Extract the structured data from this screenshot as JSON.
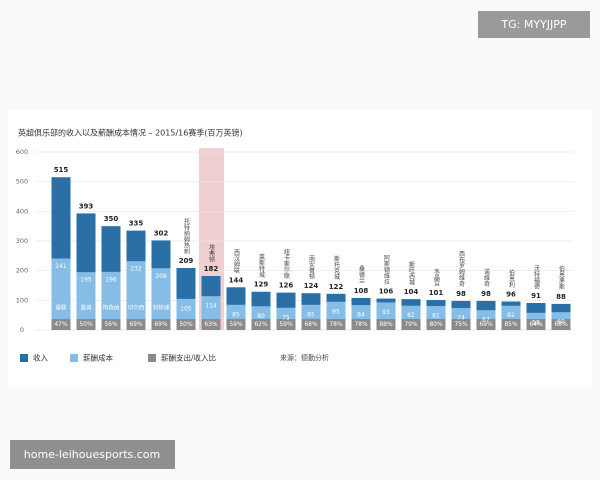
{
  "chart_data": {
    "type": "bar",
    "title": "英超俱乐部的收入以及薪酬成本情况 – 2015/16赛季(百万英镑)",
    "categories": [
      "曼联",
      "曼城",
      "阿森纳",
      "切尔西",
      "利物浦",
      "托特纳姆热刺",
      "埃弗顿",
      "西汉姆联",
      "莱斯特城",
      "纽卡斯尔联",
      "南安普顿",
      "斯托克城",
      "桑德兰",
      "阿斯顿维拉",
      "斯旺西城",
      "水晶宫",
      "西布罗姆维奇",
      "诺维奇",
      "伯恩利",
      "沃特福德",
      "伯恩茅斯"
    ],
    "series": [
      {
        "name": "收入",
        "color": "#2a6fa6",
        "values": [
          515,
          393,
          350,
          335,
          302,
          209,
          182,
          144,
          129,
          126,
          124,
          122,
          108,
          106,
          104,
          101,
          98,
          98,
          96,
          91,
          88
        ]
      },
      {
        "name": "薪酬成本",
        "color": "#86bde6",
        "values": [
          241,
          195,
          196,
          232,
          208,
          105,
          114,
          85,
          80,
          75,
          85,
          95,
          84,
          93,
          82,
          81,
          74,
          67,
          82,
          58,
          60
        ]
      }
    ],
    "ratio": {
      "name": "薪酬支出/收入比",
      "color": "#8a8a8a",
      "values": [
        47,
        50,
        56,
        69,
        69,
        50,
        63,
        59,
        62,
        59,
        68,
        78,
        78,
        88,
        79,
        80,
        75,
        69,
        85,
        64,
        68
      ],
      "value_labels": [
        "47%",
        "50%",
        "56%",
        "69%",
        "69%",
        "50%",
        "63%",
        "59%",
        "62%",
        "59%",
        "68%",
        "78%",
        "78%",
        "88%",
        "79%",
        "80%",
        "75%",
        "69%",
        "85%",
        "64%",
        "68%"
      ]
    },
    "source": "来源：德勤分析",
    "ylim": [
      0,
      600
    ],
    "yticks": [
      0,
      100,
      200,
      300,
      400,
      500,
      600
    ],
    "grid": true,
    "watermark_top": "TG: MYYJJPP",
    "watermark_bottom": "home-leihouesports.com"
  }
}
